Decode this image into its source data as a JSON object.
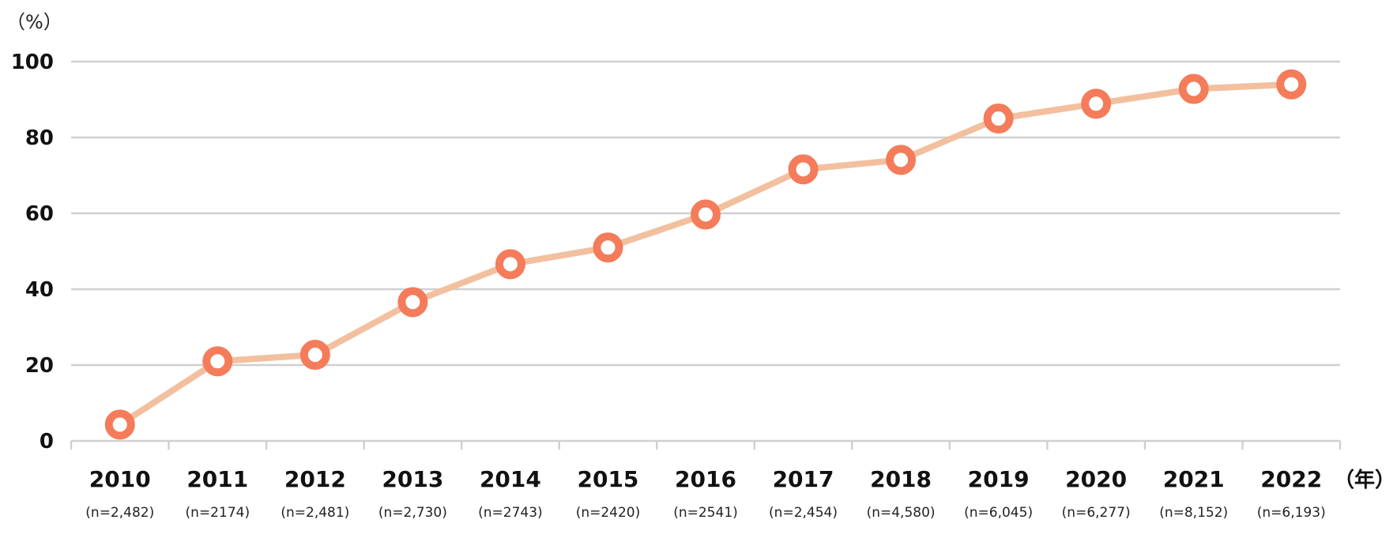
{
  "chart_data": {
    "type": "line",
    "y_unit_label": "（%）",
    "x_unit_label": "（年）",
    "ylim": [
      0,
      100
    ],
    "yticks": [
      "0",
      "20",
      "40",
      "60",
      "80",
      "100"
    ],
    "grid": true,
    "categories": [
      "2010",
      "2011",
      "2012",
      "2013",
      "2014",
      "2015",
      "2016",
      "2017",
      "2018",
      "2019",
      "2020",
      "2021",
      "2022"
    ],
    "sample_sizes": [
      "(n=2,482)",
      "(n=2174)",
      "(n=2,481)",
      "(n=2,730)",
      "(n=2743)",
      "(n=2420)",
      "(n=2541)",
      "(n=2,454)",
      "(n=4,580)",
      "(n=6,045)",
      "(n=6,277)",
      "(n=8,152)",
      "(n=6,193)"
    ],
    "series": [
      {
        "values": [
          4.3,
          21.0,
          22.7,
          36.6,
          46.6,
          51.0,
          59.7,
          71.6,
          74.1,
          85.0,
          88.9,
          92.8,
          94.0
        ]
      }
    ],
    "colors": {
      "line": "#f2c09f",
      "marker": "#f47c5a",
      "grid": "#d0d0d0"
    }
  }
}
